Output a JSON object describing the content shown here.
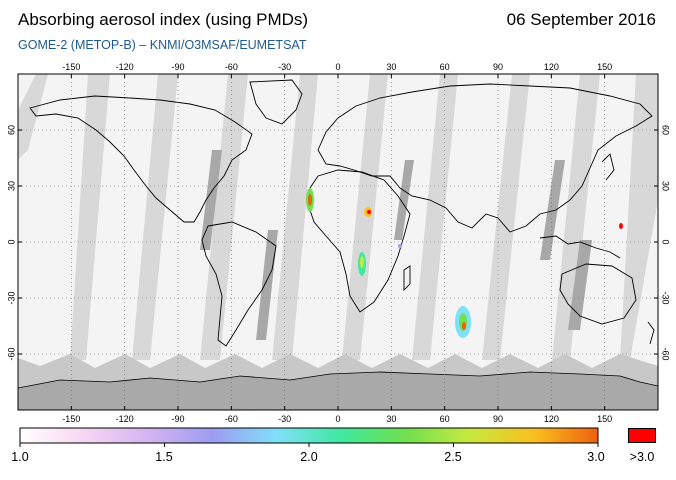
{
  "header": {
    "title": "Absorbing aerosol index (using PMDs)",
    "date": "06 September 2016",
    "subtitle": "GOME-2 (METOP-B)  –  KNMI/O3MSAF/EUMETSAT"
  },
  "map": {
    "lon_ticks": [
      "-150",
      "-120",
      "-90",
      "-60",
      "-30",
      "0",
      "30",
      "60",
      "90",
      "120",
      "150"
    ],
    "lat_ticks": [
      "60",
      "30",
      "0",
      "-30",
      "-60"
    ],
    "lon_values": [
      -150,
      -120,
      -90,
      -60,
      -30,
      0,
      30,
      60,
      90,
      120,
      150
    ],
    "lat_values": [
      60,
      30,
      0,
      -30,
      -60
    ]
  },
  "colorbar": {
    "labels": [
      "1.0",
      "1.5",
      "2.0",
      "2.5",
      "3.0"
    ],
    "over_label": ">3.0",
    "colors": [
      "#ffffff",
      "#f6d6f2",
      "#d4b4f0",
      "#9c9cf0",
      "#80e0f8",
      "#40e8a0",
      "#70e050",
      "#c8e840",
      "#f8c020",
      "#f06010"
    ],
    "over_color": "#ff0000"
  }
}
